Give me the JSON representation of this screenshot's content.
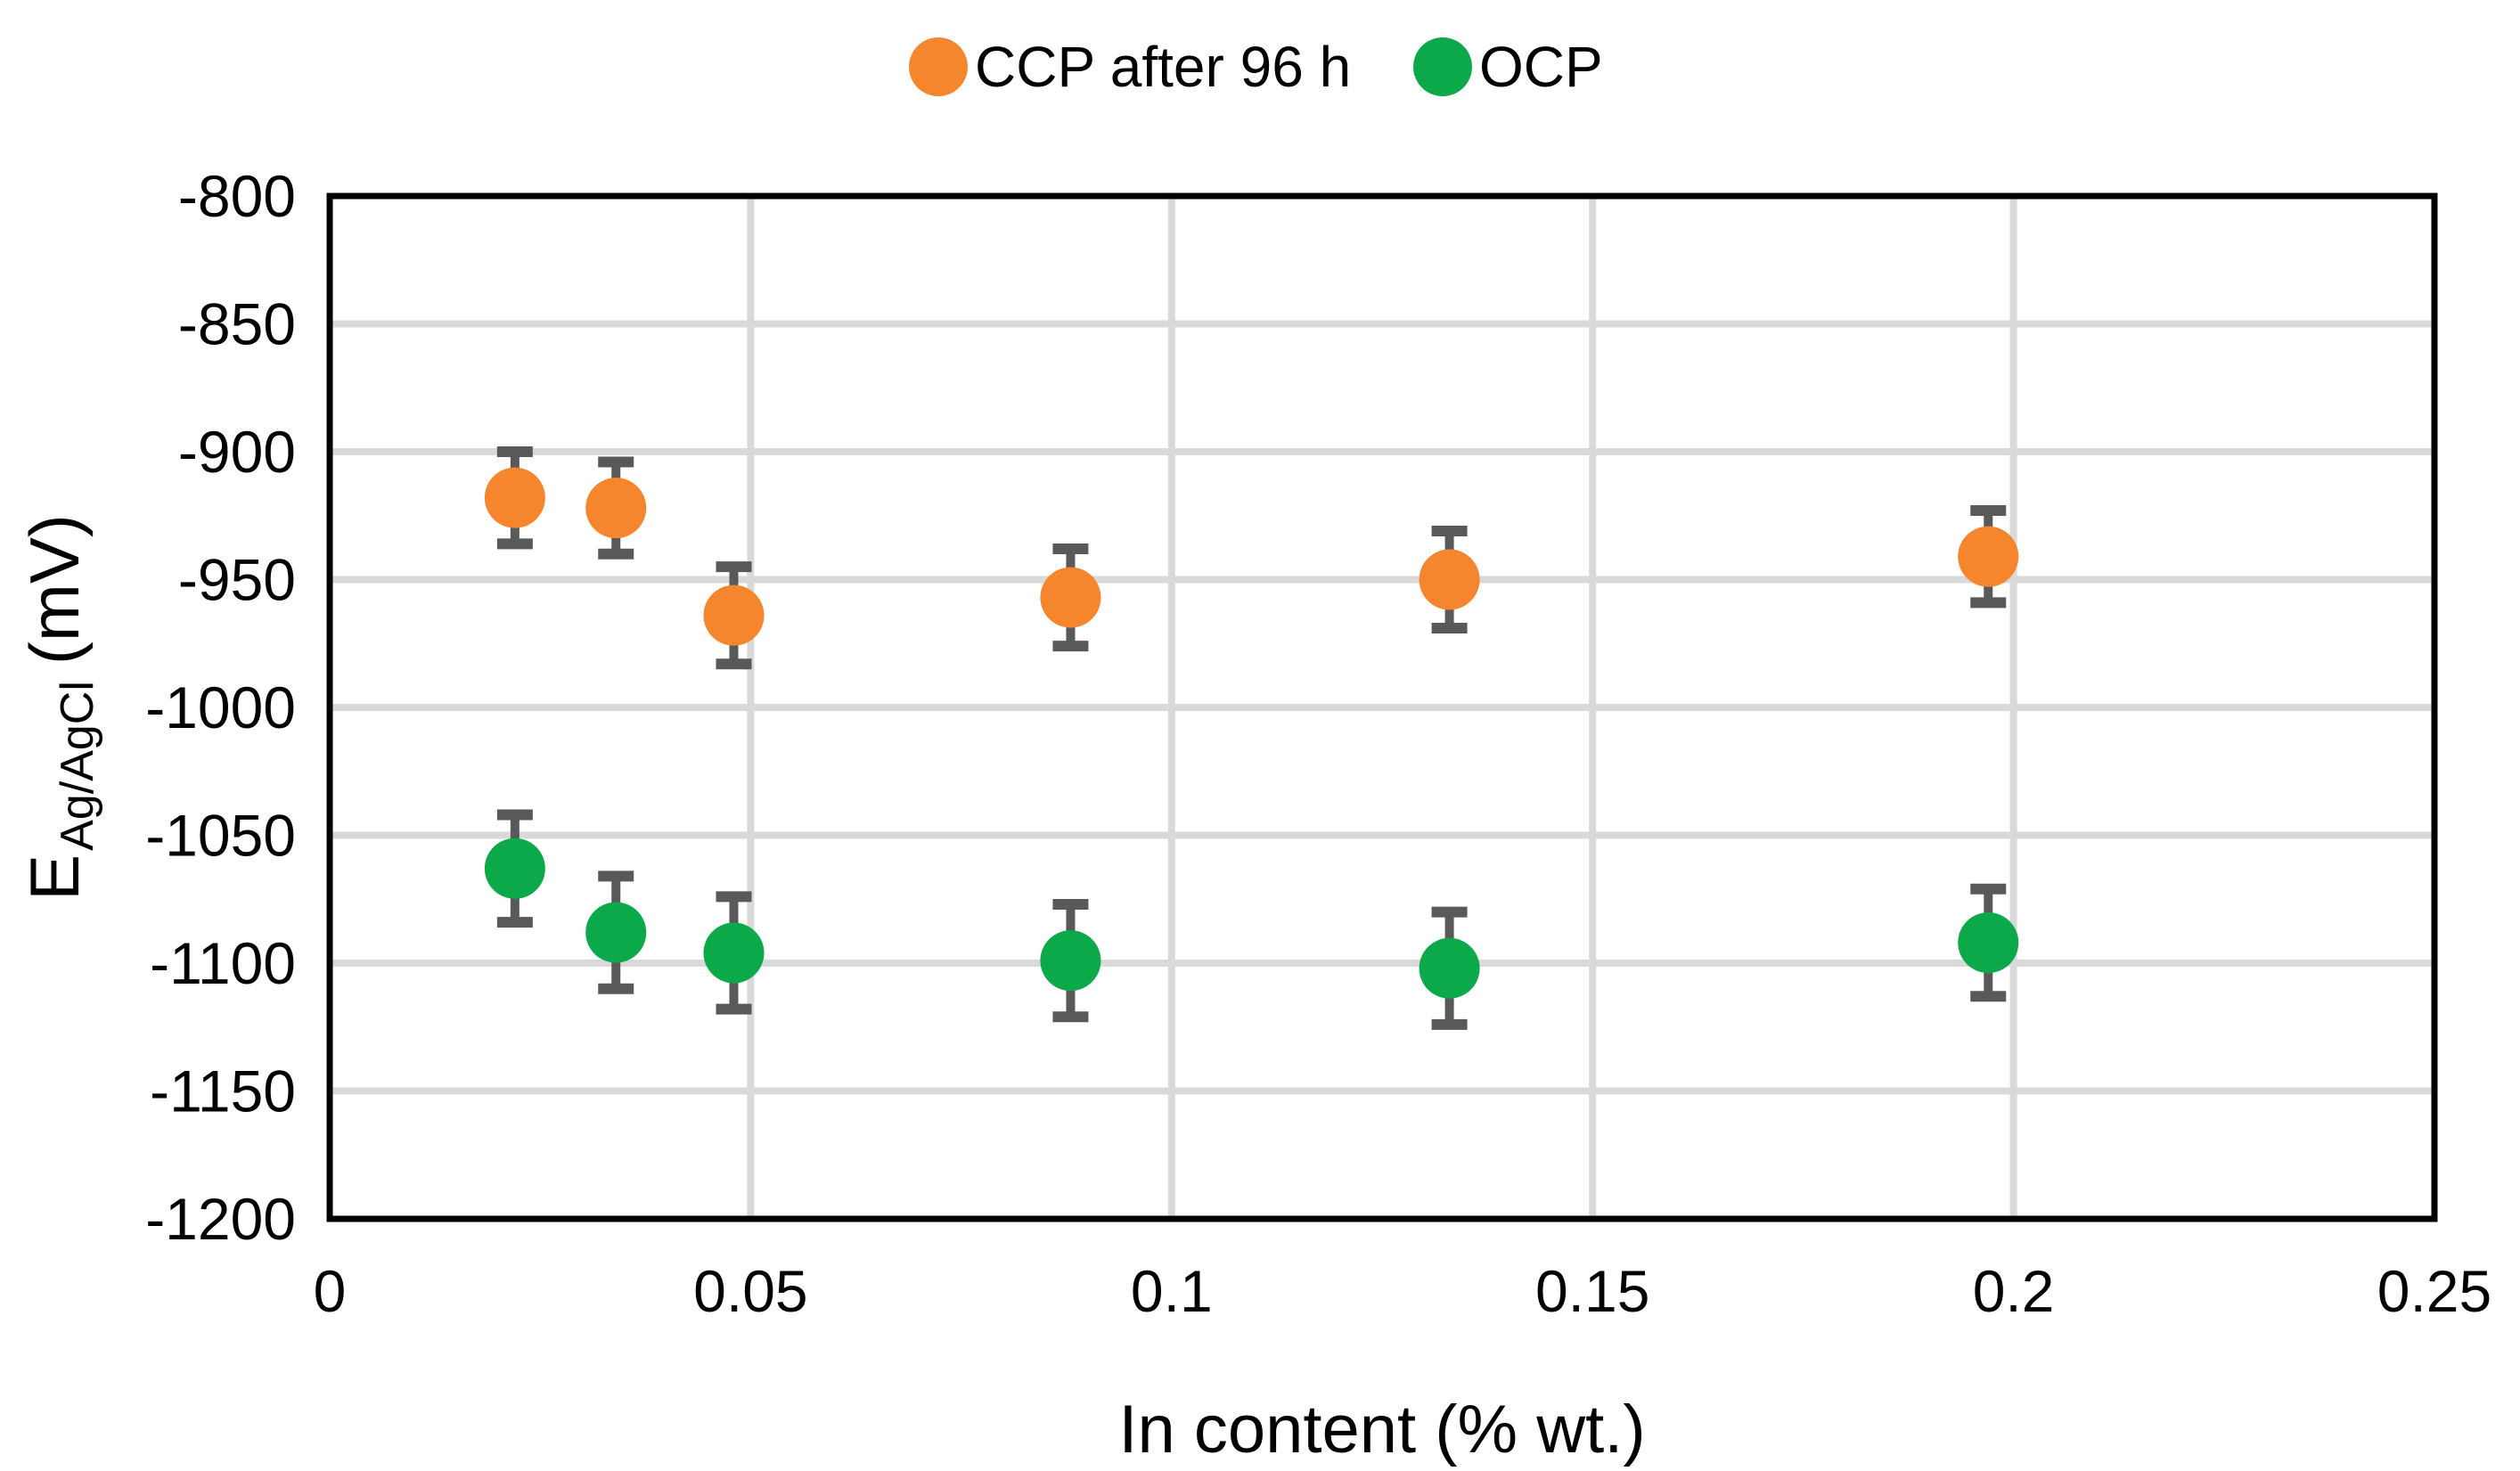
{
  "chart_data": {
    "type": "scatter",
    "title": "",
    "legend_position": "top",
    "grid": true,
    "x_axis": {
      "label": "In content (% wt.)",
      "ticks": [
        "0",
        "0.05",
        "0.1",
        "0.15",
        "0.2",
        "0.25"
      ],
      "min": 0,
      "max": 0.25
    },
    "y_axis": {
      "label_main": "E",
      "label_sub": "Ag/AgCl",
      "label_unit": "(mV)",
      "ticks": [
        "-800",
        "-850",
        "-900",
        "-950",
        "-1000",
        "-1050",
        "-1100",
        "-1150",
        "-1200"
      ],
      "min": -1200,
      "max": -800
    },
    "series": [
      {
        "name": "CCP after 96 h",
        "color": "#F6862D",
        "marker": "circle",
        "points": [
          {
            "x": 0.022,
            "y": -918,
            "err": 18
          },
          {
            "x": 0.034,
            "y": -922,
            "err": 18
          },
          {
            "x": 0.048,
            "y": -964,
            "err": 19
          },
          {
            "x": 0.088,
            "y": -957,
            "err": 19
          },
          {
            "x": 0.133,
            "y": -950,
            "err": 19
          },
          {
            "x": 0.197,
            "y": -941,
            "err": 18
          }
        ]
      },
      {
        "name": "OCP",
        "color": "#0CA94A",
        "marker": "circle",
        "points": [
          {
            "x": 0.022,
            "y": -1063,
            "err": 21
          },
          {
            "x": 0.034,
            "y": -1088,
            "err": 22
          },
          {
            "x": 0.048,
            "y": -1096,
            "err": 22
          },
          {
            "x": 0.088,
            "y": -1099,
            "err": 22
          },
          {
            "x": 0.133,
            "y": -1102,
            "err": 22
          },
          {
            "x": 0.197,
            "y": -1092,
            "err": 21
          }
        ]
      }
    ],
    "colors": {
      "error_bar": "#595959",
      "gridline": "#D9D9D9",
      "axis_border": "#000000",
      "background": "#FFFFFF"
    }
  }
}
